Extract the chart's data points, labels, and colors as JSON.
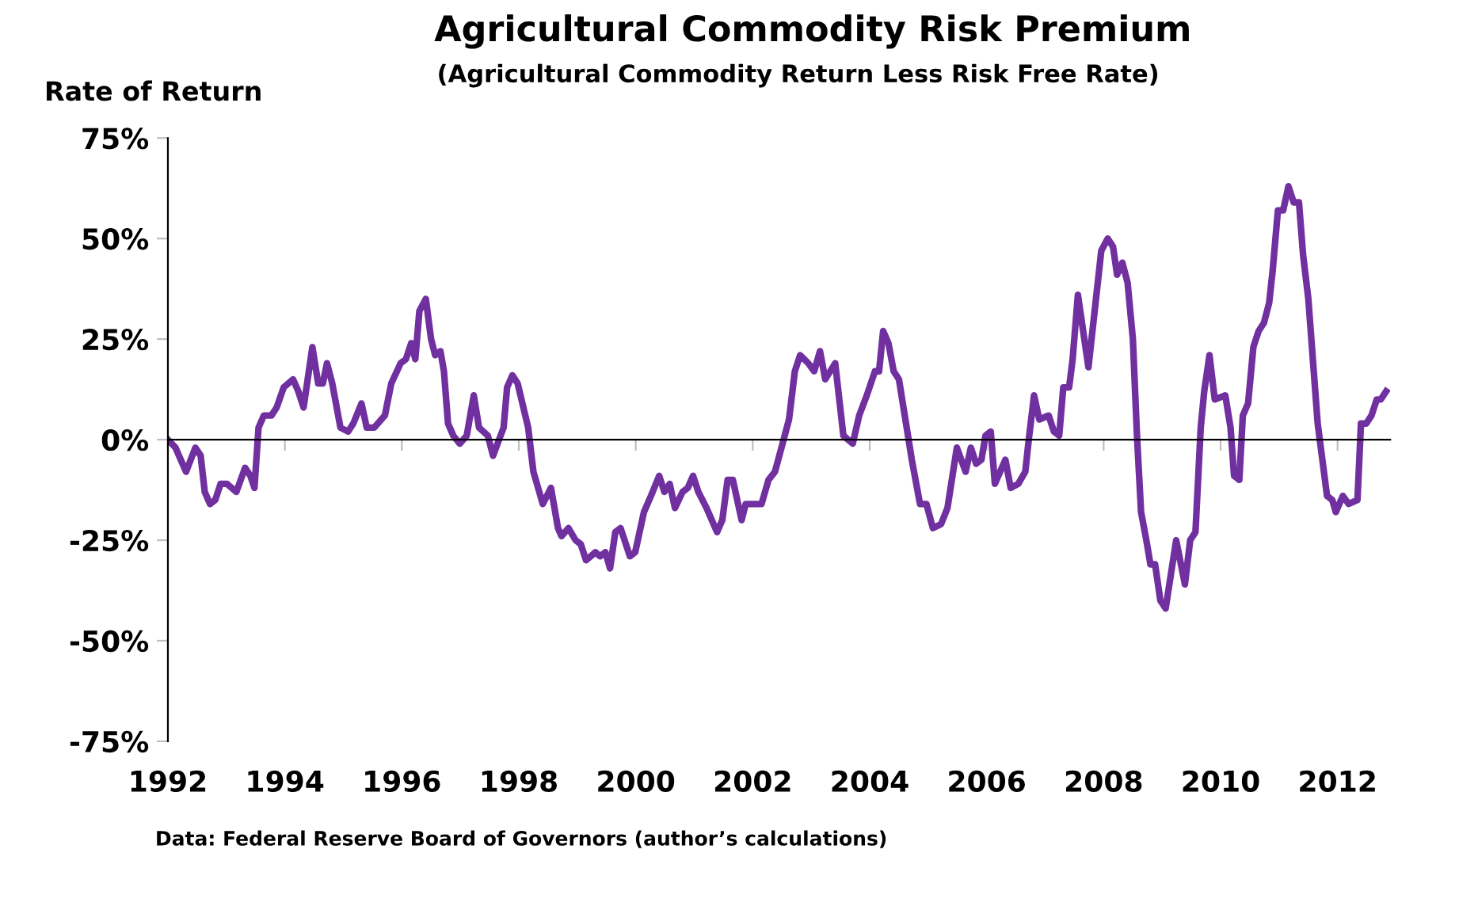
{
  "chart_data": {
    "type": "line",
    "title": "Agricultural Commodity Risk Premium",
    "subtitle": "(Agricultural Commodity Return Less Risk Free Rate)",
    "ylabel": "Rate of Return",
    "annotations": [
      "Data: Federal Reserve Board of Governors (author’s calculations)"
    ],
    "x": [
      1992.0,
      1992.13,
      1992.31,
      1992.47,
      1992.56,
      1992.63,
      1992.72,
      1992.81,
      1992.9,
      1993.01,
      1993.17,
      1993.32,
      1993.41,
      1993.48,
      1993.55,
      1993.64,
      1993.77,
      1993.86,
      1993.98,
      1994.14,
      1994.23,
      1994.32,
      1994.47,
      1994.57,
      1994.65,
      1994.72,
      1994.81,
      1994.95,
      1995.08,
      1995.17,
      1995.31,
      1995.4,
      1995.53,
      1995.71,
      1995.82,
      1995.98,
      1996.07,
      1996.16,
      1996.23,
      1996.3,
      1996.41,
      1996.5,
      1996.57,
      1996.66,
      1996.72,
      1996.79,
      1996.88,
      1996.99,
      1997.11,
      1997.23,
      1997.32,
      1997.47,
      1997.56,
      1997.74,
      1997.8,
      1997.89,
      1997.98,
      1998.16,
      1998.25,
      1998.41,
      1998.55,
      1998.67,
      1998.73,
      1998.85,
      1998.97,
      1999.06,
      1999.15,
      1999.31,
      1999.39,
      1999.48,
      1999.56,
      1999.65,
      1999.74,
      1999.9,
      1999.99,
      2000.14,
      2000.26,
      2000.4,
      2000.49,
      2000.58,
      2000.67,
      2000.8,
      2000.89,
      2000.98,
      2001.07,
      2001.21,
      2001.39,
      2001.48,
      2001.57,
      2001.66,
      2001.81,
      2001.88,
      2002.02,
      2002.15,
      2002.27,
      2002.38,
      2002.51,
      2002.62,
      2002.72,
      2002.81,
      2002.95,
      2003.05,
      2003.15,
      2003.24,
      2003.41,
      2003.55,
      2003.71,
      2003.82,
      2003.95,
      2004.09,
      2004.16,
      2004.23,
      2004.32,
      2004.41,
      2004.5,
      2004.72,
      2004.86,
      2004.97,
      2005.08,
      2005.22,
      2005.33,
      2005.49,
      2005.64,
      2005.73,
      2005.82,
      2005.91,
      2005.98,
      2006.07,
      2006.14,
      2006.32,
      2006.41,
      2006.54,
      2006.66,
      2006.72,
      2006.81,
      2006.9,
      2007.06,
      2007.15,
      2007.24,
      2007.31,
      2007.41,
      2007.47,
      2007.56,
      2007.74,
      2007.96,
      2008.07,
      2008.16,
      2008.23,
      2008.32,
      2008.41,
      2008.5,
      2008.57,
      2008.64,
      2008.73,
      2008.8,
      2008.88,
      2008.97,
      2009.06,
      2009.24,
      2009.39,
      2009.48,
      2009.57,
      2009.66,
      2009.72,
      2009.81,
      2009.9,
      2010.08,
      2010.17,
      2010.23,
      2010.32,
      2010.38,
      2010.47,
      2010.56,
      2010.65,
      2010.74,
      2010.83,
      2010.89,
      2010.98,
      2011.07,
      2011.16,
      2011.25,
      2011.34,
      2011.41,
      2011.5,
      2011.66,
      2011.82,
      2011.91,
      2011.97,
      2012.09,
      2012.19,
      2012.34,
      2012.4,
      2012.49,
      2012.58,
      2012.67,
      2012.74,
      2012.83
    ],
    "series": [
      {
        "color": "#7030a0",
        "values": [
          0,
          -2,
          -8,
          -2,
          -4,
          -13,
          -16,
          -15,
          -11,
          -11,
          -13,
          -7,
          -9,
          -12,
          3,
          6,
          6,
          8,
          13,
          15,
          12,
          8,
          23,
          14,
          14,
          19,
          14,
          3,
          2,
          4,
          9,
          3,
          3,
          6,
          14,
          19,
          20,
          24,
          20,
          32,
          35,
          25,
          21,
          22,
          17,
          4,
          1,
          -1,
          1,
          11,
          3,
          1,
          -4,
          3,
          13,
          16,
          14,
          3,
          -8,
          -16,
          -12,
          -22,
          -24,
          -22,
          -25,
          -26,
          -30,
          -28,
          -29,
          -28,
          -32,
          -23,
          -22,
          -29,
          -28,
          -18,
          -14,
          -9,
          -13,
          -11,
          -17,
          -13,
          -12,
          -9,
          -13,
          -17,
          -23,
          -20,
          -10,
          -10,
          -20,
          -16,
          -16,
          -16,
          -10,
          -8,
          -1,
          5,
          17,
          21,
          19,
          17,
          22,
          15,
          19,
          1,
          -1,
          6,
          11,
          17,
          17,
          27,
          24,
          17,
          15,
          -5,
          -16,
          -16,
          -22,
          -21,
          -17,
          -2,
          -8,
          -2,
          -6,
          -5,
          1,
          2,
          -11,
          -5,
          -12,
          -11,
          -8,
          0,
          11,
          5,
          6,
          2,
          1,
          13,
          13,
          20,
          36,
          18,
          47,
          50,
          48,
          41,
          44,
          39,
          25,
          1,
          -18,
          -25,
          -31,
          -31,
          -40,
          -42,
          -25,
          -36,
          -25,
          -23,
          3,
          12,
          21,
          10,
          11,
          3,
          -9,
          -10,
          6,
          9,
          23,
          27,
          29,
          34,
          42,
          57,
          57,
          63,
          59,
          59,
          46,
          35,
          4,
          -14,
          -15,
          -18,
          -14,
          -16,
          -15,
          4,
          4,
          6,
          10,
          10,
          12
        ]
      }
    ],
    "xlim": [
      1992,
      2012.9
    ],
    "xticks": [
      1992,
      1994,
      1996,
      1998,
      2000,
      2002,
      2004,
      2006,
      2008,
      2010,
      2012
    ],
    "ylim": [
      -75,
      75
    ],
    "yticks": [
      {
        "value": -75,
        "label": "-75%"
      },
      {
        "value": -50,
        "label": "-50%"
      },
      {
        "value": -25,
        "label": "-25%"
      },
      {
        "value": 0,
        "label": "0%"
      },
      {
        "value": 25,
        "label": "25%"
      },
      {
        "value": 50,
        "label": "50%"
      },
      {
        "value": 75,
        "label": "75%"
      }
    ],
    "legend": false,
    "marker": "none",
    "line_style": "solid"
  }
}
